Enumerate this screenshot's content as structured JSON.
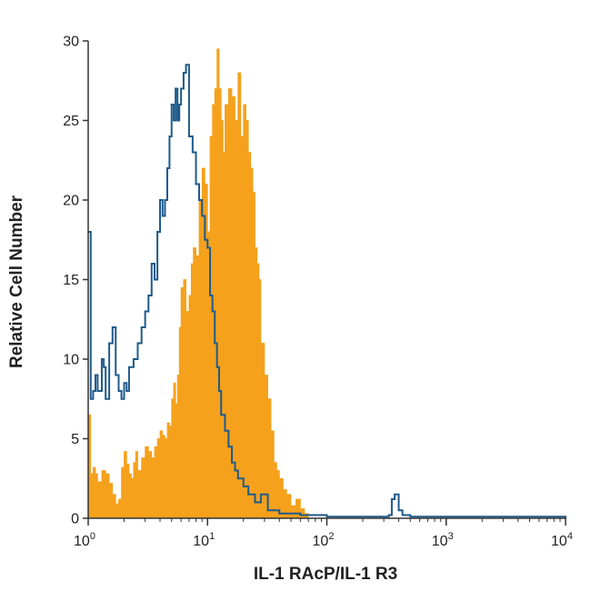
{
  "chart_data": {
    "type": "area",
    "xlabel": "IL-1 RAcP/IL-1 R3",
    "ylabel": "Relative Cell Number",
    "xscale": "log",
    "xlim": [
      1,
      10000
    ],
    "ylim": [
      0,
      30
    ],
    "x_ticks": [
      {
        "value": 1,
        "base": "10",
        "exp": "0"
      },
      {
        "value": 10,
        "base": "10",
        "exp": "1"
      },
      {
        "value": 100,
        "base": "10",
        "exp": "2"
      },
      {
        "value": 1000,
        "base": "10",
        "exp": "3"
      },
      {
        "value": 10000,
        "base": "10",
        "exp": "4"
      }
    ],
    "y_ticks": [
      0,
      5,
      10,
      15,
      20,
      25,
      30
    ],
    "grid": false,
    "colors": {
      "filled": "#F5A11C",
      "outline": "#1F5A8B",
      "axis": "#333333"
    },
    "series": [
      {
        "style": "filled",
        "x": [
          1.0,
          1.05,
          1.1,
          1.15,
          1.2,
          1.3,
          1.4,
          1.5,
          1.6,
          1.7,
          1.8,
          1.9,
          2.0,
          2.1,
          2.2,
          2.3,
          2.4,
          2.5,
          2.6,
          2.8,
          3.0,
          3.2,
          3.4,
          3.6,
          3.8,
          4.0,
          4.2,
          4.4,
          4.6,
          4.8,
          5.0,
          5.2,
          5.4,
          5.6,
          5.8,
          6.0,
          6.3,
          6.6,
          7.0,
          7.3,
          7.6,
          8.0,
          8.5,
          9.0,
          9.5,
          10.0,
          10.5,
          11.0,
          11.5,
          12.0,
          12.5,
          13.0,
          13.5,
          14.0,
          15.0,
          16.0,
          17.0,
          18.0,
          19.0,
          20.0,
          21.0,
          22.0,
          23.0,
          24.0,
          25.0,
          26.0,
          27.0,
          28.0,
          30.0,
          32.0,
          34.0,
          36.0,
          38.0,
          40.0,
          43.0,
          46.0,
          50.0,
          55.0,
          60.0,
          65.0,
          70.0
        ],
        "y": [
          6.5,
          2.8,
          3.2,
          2.8,
          2.3,
          3.0,
          2.8,
          2.2,
          1.5,
          0.9,
          1.2,
          3.2,
          4.2,
          3.4,
          2.8,
          2.5,
          3.5,
          4.2,
          3.0,
          3.8,
          4.5,
          4.2,
          3.8,
          4.5,
          5.0,
          5.5,
          5.2,
          5.0,
          6.0,
          5.8,
          7.5,
          8.5,
          7.2,
          9.0,
          12.0,
          14.5,
          15.0,
          13.0,
          14.0,
          16.0,
          17.0,
          16.5,
          20.0,
          22.0,
          21.0,
          18.0,
          24.0,
          26.0,
          27.0,
          29.5,
          27.0,
          25.0,
          23.0,
          26.0,
          27.0,
          26.5,
          25.0,
          28.0,
          24.0,
          26.0,
          25.0,
          23.0,
          22.0,
          20.5,
          17.0,
          16.0,
          15.0,
          11.0,
          9.0,
          7.5,
          5.5,
          3.5,
          3.0,
          2.5,
          1.8,
          1.5,
          0.8,
          1.2,
          0.6,
          0.3,
          0.0
        ]
      },
      {
        "style": "outline",
        "x": [
          1.0,
          1.05,
          1.1,
          1.15,
          1.2,
          1.3,
          1.35,
          1.4,
          1.5,
          1.6,
          1.7,
          1.8,
          1.9,
          2.0,
          2.1,
          2.2,
          2.4,
          2.6,
          2.8,
          3.0,
          3.2,
          3.4,
          3.6,
          3.8,
          4.0,
          4.2,
          4.4,
          4.6,
          4.8,
          5.0,
          5.2,
          5.4,
          5.6,
          5.8,
          6.0,
          6.3,
          6.6,
          7.0,
          7.5,
          8.0,
          8.5,
          9.0,
          9.5,
          10.0,
          10.5,
          11.0,
          11.5,
          12.0,
          12.5,
          13.0,
          14.0,
          15.0,
          16.0,
          17.0,
          18.0,
          20.0,
          22.0,
          25.0,
          28.0,
          32.0,
          40.0,
          60.0,
          100.0,
          200.0,
          330.0,
          350.0,
          370.0,
          400.0,
          430.0,
          500.0,
          1000.0,
          5000.0,
          10000.0
        ],
        "y": [
          18.0,
          7.5,
          8.0,
          9.0,
          8.0,
          10.0,
          9.5,
          7.5,
          11.0,
          12.0,
          9.0,
          8.0,
          7.5,
          8.5,
          8.0,
          9.5,
          10.0,
          11.0,
          12.0,
          13.0,
          14.0,
          16.0,
          15.0,
          18.0,
          20.0,
          19.0,
          20.0,
          22.0,
          24.0,
          26.0,
          25.0,
          27.0,
          25.0,
          26.0,
          27.0,
          28.0,
          28.5,
          24.0,
          23.0,
          21.0,
          20.0,
          19.0,
          17.5,
          17.0,
          14.0,
          13.0,
          11.0,
          9.5,
          8.0,
          6.5,
          5.5,
          4.5,
          3.5,
          3.0,
          2.5,
          2.0,
          1.5,
          1.0,
          1.5,
          0.5,
          0.3,
          0.2,
          0.1,
          0.1,
          0.2,
          1.2,
          1.5,
          0.5,
          0.2,
          0.1,
          0.1,
          0.1,
          0.0
        ]
      }
    ]
  }
}
